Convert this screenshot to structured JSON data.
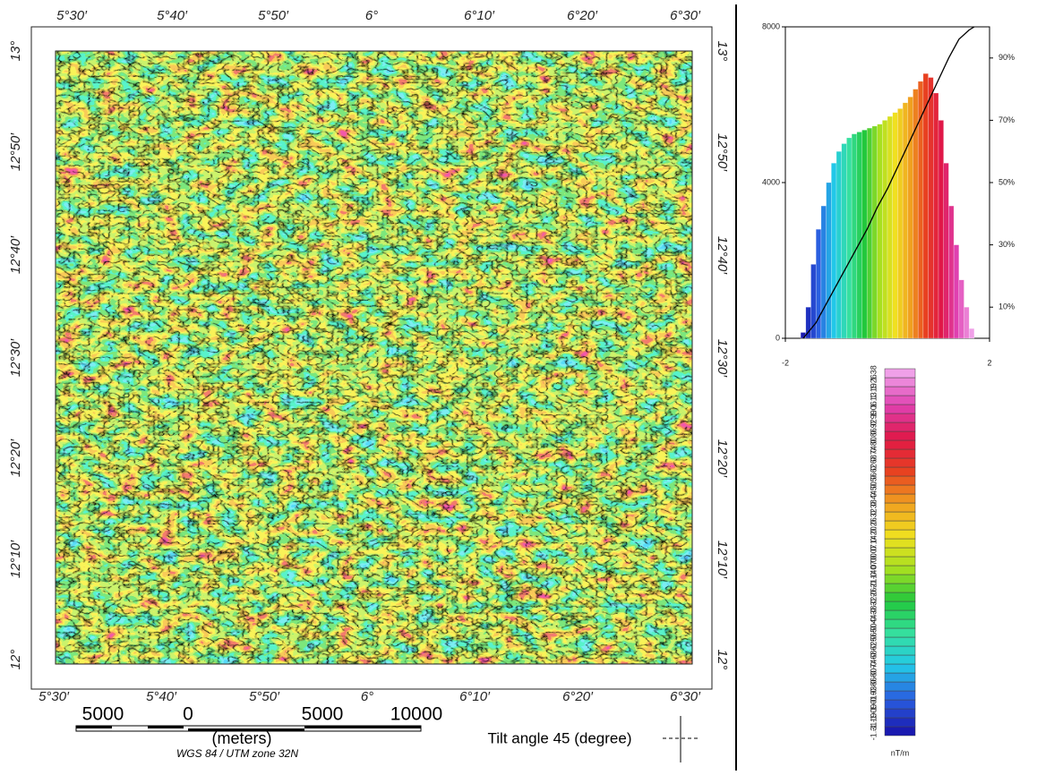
{
  "map": {
    "top_labels": [
      "5°30′",
      "5°40′",
      "5°50′",
      "6°",
      "6°10′",
      "6°20′",
      "6°30′"
    ],
    "bottom_labels": [
      "5°30′",
      "5°40′",
      "5°50′",
      "6°",
      "6°10′",
      "6°20′",
      "6°30′"
    ],
    "left_labels": [
      "13°",
      "12°50′",
      "12°40′",
      "12°30′",
      "12°20′",
      "12°10′",
      "12°"
    ],
    "right_labels": [
      "13°",
      "12°50′",
      "12°40′",
      "12°30′",
      "12°20′",
      "12°10′",
      "12°"
    ],
    "scale_bar": {
      "labels": [
        "5000",
        "0",
        "5000",
        "10000"
      ],
      "unit": "(meters)"
    },
    "projection": "WGS 84 / UTM zone 32N",
    "caption": "Tilt angle 45 (degree)"
  },
  "histogram": {
    "type": "bar",
    "bins": [
      -1.7,
      -1.6,
      -1.5,
      -1.4,
      -1.3,
      -1.2,
      -1.1,
      -1.0,
      -0.9,
      -0.8,
      -0.7,
      -0.6,
      -0.5,
      -0.4,
      -0.3,
      -0.2,
      -0.1,
      0,
      0.1,
      0.2,
      0.3,
      0.4,
      0.5,
      0.6,
      0.7,
      0.8,
      0.9,
      1.0,
      1.1,
      1.2,
      1.3,
      1.4,
      1.5,
      1.6,
      1.7
    ],
    "values": [
      150,
      800,
      1900,
      2800,
      3400,
      4000,
      4500,
      4800,
      5000,
      5150,
      5250,
      5300,
      5350,
      5400,
      5450,
      5500,
      5600,
      5700,
      5800,
      5900,
      6050,
      6200,
      6400,
      6600,
      6800,
      6700,
      6300,
      5600,
      4500,
      3400,
      2400,
      1500,
      800,
      250
    ],
    "cumulative": {
      "x": [
        -1.65,
        -1.4,
        -1.2,
        -1.0,
        -0.8,
        -0.6,
        -0.4,
        -0.2,
        0,
        0.2,
        0.4,
        0.6,
        0.8,
        1.0,
        1.2,
        1.4,
        1.6,
        1.7
      ],
      "values": [
        0,
        5,
        11,
        17,
        23,
        29,
        35,
        42,
        48,
        55,
        62,
        69,
        76,
        83,
        90,
        96,
        99,
        100
      ],
      "axis": "y2"
    },
    "xlim": [
      -2,
      2
    ],
    "xticks": [
      -2,
      2
    ],
    "ylim": [
      0,
      8000
    ],
    "yticks": [
      0,
      4000,
      8000
    ],
    "y2lim": [
      0,
      100
    ],
    "y2ticks": [
      {
        "value": 10,
        "label": "10%"
      },
      {
        "value": 30,
        "label": "30%"
      },
      {
        "value": 50,
        "label": "50%"
      },
      {
        "value": 70,
        "label": "70%"
      },
      {
        "value": 90,
        "label": "90%"
      }
    ],
    "colormap": [
      "#1a1ab0",
      "#2a5fe0",
      "#22c8e8",
      "#35e0a0",
      "#22c83c",
      "#a8e020",
      "#f0e020",
      "#f0a020",
      "#e84020",
      "#e01848",
      "#e040b0",
      "#f0a0e8"
    ]
  },
  "legend": {
    "labels": [
      "-1.31",
      "-1.19",
      "-1.09",
      "-1.01",
      "-0.93",
      "-0.86",
      "-0.80",
      "-0.74",
      "-0.68",
      "-0.62",
      "-0.56",
      "-0.50",
      "-0.44",
      "-0.38",
      "-0.32",
      "-0.26",
      "-0.21",
      "-0.14",
      "-0.07",
      "0.00",
      "0.07",
      "0.14",
      "0.20",
      "0.26",
      "0.32",
      "0.38",
      "0.44",
      "0.50",
      "0.56",
      "0.62",
      "0.68",
      "0.74",
      "0.80",
      "0.86",
      "0.92",
      "0.99",
      "1.06",
      "1.13",
      "1.19",
      "1.26",
      "1.38"
    ],
    "unit": "nT/m"
  }
}
